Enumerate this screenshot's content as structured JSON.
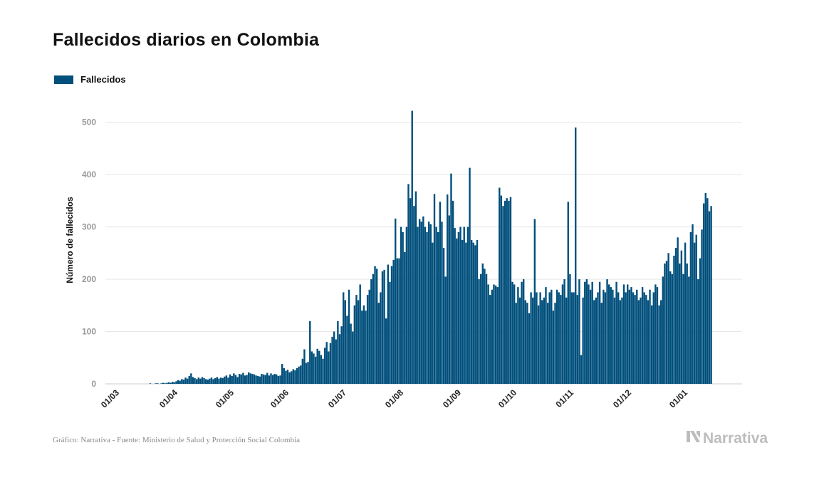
{
  "title": "Fallecidos diarios en Colombia",
  "footer": "Gráfico: Narrativa - Fuente: Ministerio de Salud y Protección Social Colombia",
  "brand": "Narrativa",
  "colors": {
    "bar": "#004f7c",
    "grid": "#e6e6e6",
    "tick": "#999999",
    "brand": "#bdbdbd"
  },
  "chart_data": {
    "type": "bar",
    "legend": {
      "labels": [
        "Fallecidos"
      ],
      "position": "top-left"
    },
    "ylabel": "Número de fallecidos",
    "ylim": [
      0,
      550
    ],
    "yticks": [
      0,
      100,
      200,
      300,
      400,
      500
    ],
    "grid": true,
    "xticks": [
      "01/03",
      "01/04",
      "01/05",
      "01/06",
      "01/07",
      "01/08",
      "01/09",
      "01/10",
      "01/11",
      "01/12",
      "01/01"
    ],
    "series": [
      {
        "name": "Fallecidos",
        "segments": [
          {
            "start": "01/03",
            "values": [
              0,
              0,
              0,
              0,
              0,
              0,
              0,
              0,
              0,
              0,
              0,
              0,
              0,
              0,
              0,
              0,
              0,
              0,
              0,
              0,
              0,
              1,
              0,
              0,
              1,
              1,
              0,
              1,
              2,
              1,
              2
            ]
          },
          {
            "start": "01/04",
            "values": [
              3,
              2,
              4,
              3,
              5,
              7,
              6,
              9,
              8,
              12,
              10,
              15,
              20,
              13,
              11,
              9,
              12,
              10,
              13,
              11,
              9,
              8,
              10,
              12,
              9,
              11,
              13,
              10,
              12,
              11
            ]
          },
          {
            "start": "01/05",
            "values": [
              14,
              16,
              12,
              18,
              15,
              20,
              17,
              13,
              19,
              18,
              21,
              16,
              17,
              22,
              20,
              19,
              18,
              16,
              15,
              14,
              19,
              18,
              17,
              21,
              16,
              20,
              17,
              19,
              18,
              15,
              16
            ]
          },
          {
            "start": "01/06",
            "values": [
              38,
              30,
              25,
              27,
              22,
              24,
              28,
              26,
              30,
              33,
              35,
              48,
              66,
              40,
              42,
              120,
              62,
              58,
              52,
              67,
              63,
              55,
              48,
              69,
              80,
              62,
              78,
              90,
              100,
              85,
              120
            ]
          },
          {
            "start": "01/07",
            "values": [
              95,
              110,
              175,
              160,
              130,
              180,
              115,
              100,
              150,
              170,
              160,
              190,
              140,
              150,
              140,
              170,
              180,
              200,
              210,
              225,
              220,
              155,
              175,
              215,
              218,
              125,
              228,
              195,
              225,
              237,
              316,
              240,
              240
            ]
          },
          {
            "start": "01/08",
            "values": [
              300,
              290,
              252,
              300,
              382,
              355,
              522,
              340,
              368,
              300,
              315,
              310,
              320,
              300,
              290,
              310,
              305,
              270,
              363,
              300,
              290,
              348,
              310,
              260,
              205,
              362,
              322,
              402,
              350,
              298,
              278,
              290,
              300,
              275,
              300,
              270,
              300,
              413,
              275,
              270,
              265,
              275,
              200,
              210,
              230,
              220,
              210,
              190,
              170,
              180,
              190,
              188,
              185,
              375,
              360,
              340,
              350,
              355,
              350,
              357
            ]
          },
          {
            "start": "01/10",
            "values": [
              195,
              190,
              155,
              185,
              165,
              195,
              200,
              160,
              155,
              135,
              175,
              165,
              315,
              175,
              150,
              175,
              160,
              165,
              185,
              155,
              175,
              180,
              140,
              155,
              180,
              175,
              170,
              190,
              200,
              165,
              348,
              210,
              175,
              175,
              490,
              170,
              200
            ]
          },
          {
            "start": "01/11",
            "values": [
              55,
              165,
              195,
              200,
              190,
              180,
              195,
              160,
              165,
              175,
              195,
              155,
              180,
              175,
              200,
              190,
              185,
              180,
              165,
              195,
              175,
              160,
              165,
              190,
              175,
              190,
              180,
              185,
              175,
              170,
              180,
              160,
              165,
              185,
              175,
              170,
              160,
              180,
              150,
              175,
              190,
              185,
              150,
              160,
              205,
              230,
              235,
              250,
              215,
              210,
              245,
              260,
              280,
              230,
              255,
              210,
              270,
              230,
              205,
              290,
              305,
              270,
              285,
              200,
              240,
              295,
              345,
              365,
              355,
              330,
              340
            ]
          }
        ]
      }
    ]
  }
}
